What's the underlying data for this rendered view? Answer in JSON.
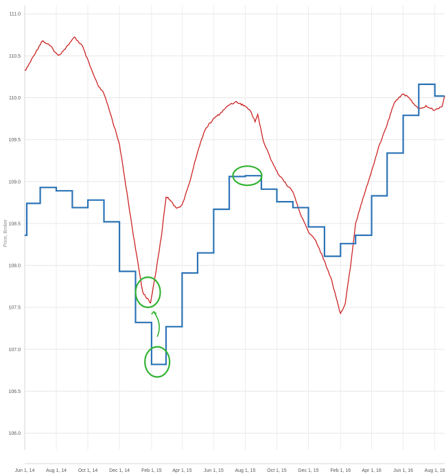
{
  "chart_data": {
    "type": "line",
    "title": "",
    "xlabel": "",
    "ylabel": "Price, Broker",
    "grid": true,
    "legend": "none",
    "ylim": [
      105.8,
      111.1
    ],
    "yticks": [
      106.0,
      106.5,
      107.0,
      107.5,
      108.0,
      108.5,
      109.0,
      109.5,
      110.0,
      110.5,
      111.0
    ],
    "ytick_labels": [
      "106.0",
      "106.5",
      "107.0",
      "107.5",
      "108.0",
      "108.5",
      "109.0",
      "109.5",
      "110.0",
      "110.5",
      "111.0"
    ],
    "xticks": [
      {
        "x": "2014-06-01",
        "label": "Jun 1, 14"
      },
      {
        "x": "2014-08-01",
        "label": "Aug 1, 14"
      },
      {
        "x": "2014-10-01",
        "label": "Oct 1, 14"
      },
      {
        "x": "2014-12-01",
        "label": "Dec 1, 14"
      },
      {
        "x": "2015-02-01",
        "label": "Feb 1, 15"
      },
      {
        "x": "2015-04-01",
        "label": "Apr 1, 15"
      },
      {
        "x": "2015-06-01",
        "label": "Jun 1, 15"
      },
      {
        "x": "2015-08-01",
        "label": "Aug 1, 15"
      },
      {
        "x": "2015-10-01",
        "label": "Oct 1, 15"
      },
      {
        "x": "2015-12-01",
        "label": "Dec 1, 15"
      },
      {
        "x": "2016-02-01",
        "label": "Feb 1, 16"
      },
      {
        "x": "2016-04-01",
        "label": "Apr 1, 16"
      },
      {
        "x": "2016-06-01",
        "label": "Jun 1, 16"
      },
      {
        "x": "2016-08-01",
        "label": "Aug 1, 16"
      }
    ],
    "xrange": [
      "2014-06-01",
      "2016-08-20"
    ],
    "series": [
      {
        "color": "#cc2222",
        "style": "line",
        "x": [
          "2014-06-01",
          "2014-06-05",
          "2014-06-20",
          "2014-07-05",
          "2014-07-20",
          "2014-08-05",
          "2014-08-20",
          "2014-09-05",
          "2014-09-20",
          "2014-10-05",
          "2014-10-20",
          "2014-11-01",
          "2014-11-15",
          "2014-12-01",
          "2014-12-15",
          "2015-01-01",
          "2015-01-15",
          "2015-01-30",
          "2015-02-10",
          "2015-02-20",
          "2015-03-01",
          "2015-03-10",
          "2015-03-20",
          "2015-04-01",
          "2015-04-15",
          "2015-05-01",
          "2015-05-15",
          "2015-06-01",
          "2015-06-15",
          "2015-07-01",
          "2015-07-15",
          "2015-08-01",
          "2015-08-10",
          "2015-08-20",
          "2015-08-25",
          "2015-09-05",
          "2015-09-20",
          "2015-10-01",
          "2015-10-15",
          "2015-11-01",
          "2015-11-15",
          "2015-12-01",
          "2015-12-15",
          "2016-01-01",
          "2016-01-15",
          "2016-02-01",
          "2016-02-10",
          "2016-02-20",
          "2016-03-01",
          "2016-03-15",
          "2016-04-01",
          "2016-04-15",
          "2016-05-01",
          "2016-05-15",
          "2016-06-01",
          "2016-06-15",
          "2016-07-01",
          "2016-07-15",
          "2016-08-01",
          "2016-08-15",
          "2016-08-20"
        ],
        "y": [
          110.32,
          110.35,
          110.52,
          110.68,
          110.62,
          110.5,
          110.6,
          110.72,
          110.62,
          110.38,
          110.15,
          110.05,
          109.78,
          109.45,
          108.88,
          108.2,
          107.68,
          107.55,
          107.95,
          108.35,
          108.82,
          108.78,
          108.68,
          108.72,
          108.98,
          109.36,
          109.62,
          109.75,
          109.82,
          109.92,
          109.95,
          109.9,
          109.85,
          109.72,
          109.8,
          109.48,
          109.26,
          109.12,
          109.0,
          108.88,
          108.62,
          108.4,
          108.3,
          108.05,
          107.82,
          107.42,
          107.55,
          107.98,
          108.5,
          108.8,
          109.12,
          109.42,
          109.68,
          109.95,
          110.05,
          109.98,
          109.86,
          109.9,
          109.85,
          109.9,
          110.02
        ]
      },
      {
        "color": "#2b73b6",
        "style": "step",
        "x": [
          "2014-06-01",
          "2014-06-05",
          "2014-07-01",
          "2014-08-01",
          "2014-09-01",
          "2014-10-01",
          "2014-11-01",
          "2014-12-01",
          "2015-01-01",
          "2015-02-01",
          "2015-03-01",
          "2015-04-01",
          "2015-05-01",
          "2015-06-01",
          "2015-07-01",
          "2015-08-01",
          "2015-09-01",
          "2015-10-01",
          "2015-11-01",
          "2015-12-01",
          "2016-01-01",
          "2016-02-01",
          "2016-03-01",
          "2016-04-01",
          "2016-05-01",
          "2016-06-01",
          "2016-07-01",
          "2016-08-01"
        ],
        "y": [
          108.36,
          108.74,
          108.93,
          108.89,
          108.69,
          108.78,
          108.52,
          107.93,
          107.32,
          106.82,
          107.27,
          107.91,
          108.15,
          108.67,
          109.06,
          109.07,
          108.91,
          108.76,
          108.69,
          108.46,
          108.11,
          108.26,
          108.36,
          108.83,
          109.34,
          109.79,
          110.16,
          110.02
        ]
      }
    ],
    "annotations": [
      {
        "shape": "ellipse",
        "color": "#33b233",
        "x": "2015-01-25",
        "y": 107.68,
        "label": ""
      },
      {
        "shape": "ellipse",
        "color": "#33b233",
        "x": "2015-02-12",
        "y": 106.85,
        "label": ""
      },
      {
        "shape": "ellipse",
        "color": "#33b233",
        "x": "2015-08-05",
        "y": 109.07,
        "label": ""
      },
      {
        "shape": "arrow",
        "color": "#33b233",
        "from_x": "2015-02-12",
        "from_y": 107.15,
        "to_x": "2015-02-05",
        "to_y": 107.45,
        "label": ""
      }
    ]
  }
}
